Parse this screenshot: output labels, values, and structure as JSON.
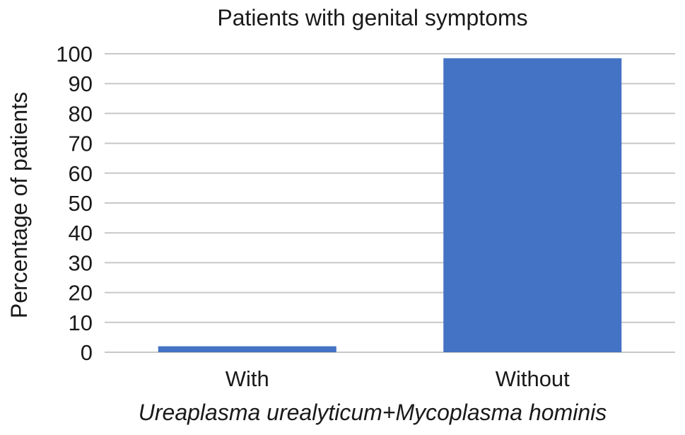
{
  "chart_data": {
    "type": "bar",
    "title": "Patients with genital symptoms",
    "xlabel": "Ureaplasma urealyticum+Mycoplasma hominis",
    "ylabel": "Percentage of patients",
    "categories": [
      "With",
      "Without"
    ],
    "values": [
      2,
      98.5
    ],
    "ylim": [
      0,
      100
    ],
    "yticks": [
      0,
      10,
      20,
      30,
      40,
      50,
      60,
      70,
      80,
      90,
      100
    ],
    "grid": true,
    "legend": "none",
    "bar_color": "#4472c4",
    "grid_color": "#c8c8c8"
  }
}
